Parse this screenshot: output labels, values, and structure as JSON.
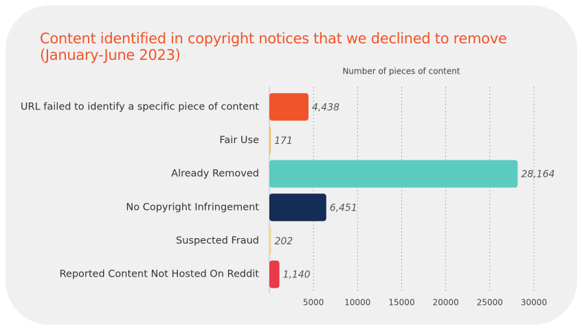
{
  "chart_data": {
    "type": "barh",
    "title": "Content identified in copyright notices that we declined to remove (January-June 2023)",
    "x_label": "Number of pieces of content",
    "categories": [
      "URL failed to identify a specific piece of content",
      "Fair Use",
      "Already Removed",
      "No Copyright Infringement",
      "Suspected Fraud",
      "Reported Content Not Hosted On Reddit"
    ],
    "values": [
      4438,
      171,
      28164,
      6451,
      202,
      1140
    ],
    "value_labels": [
      "4,438",
      "171",
      "28,164",
      "6,451",
      "202",
      "1,140"
    ],
    "colors": [
      "#f0542a",
      "#f2c46b",
      "#5ccbbf",
      "#142d56",
      "#f5d88a",
      "#e83a48"
    ],
    "xlim": [
      0,
      30000
    ],
    "xticks": [
      5000,
      10000,
      15000,
      20000,
      25000,
      30000
    ],
    "grid": true
  }
}
